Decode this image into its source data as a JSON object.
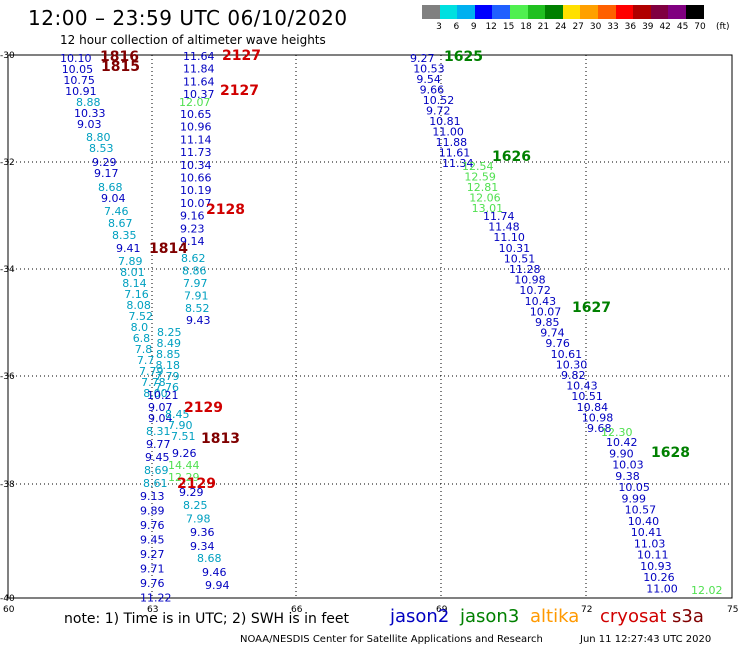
{
  "title": "12:00 – 23:59 UTC 06/10/2020",
  "subtitle": "12 hour collection of altimeter wave heights",
  "colorbar": {
    "ticks": [
      "3",
      "6",
      "9",
      "12",
      "15",
      "18",
      "21",
      "24",
      "27",
      "30",
      "33",
      "36",
      "39",
      "42",
      "45",
      "70"
    ],
    "unit": "(ft)",
    "colors": [
      "#808080",
      "#00e0e0",
      "#00b0f0",
      "#0000ff",
      "#2060ff",
      "#50f050",
      "#20c020",
      "#008000",
      "#ffe000",
      "#ffa000",
      "#ff6000",
      "#ff0000",
      "#b00000",
      "#800040",
      "#800080",
      "#000000"
    ]
  },
  "axes": {
    "lat_labels": [
      "-30",
      "-32",
      "-34",
      "-36",
      "-38",
      "-40"
    ],
    "lon_labels": [
      "60",
      "63",
      "66",
      "69",
      "72",
      "75"
    ]
  },
  "colors": {
    "jason2": "#0000c0",
    "jason3": "#008000",
    "altika": "#ff9900",
    "cryosat": "#d00000",
    "s3a": "#800000",
    "light": "#00a0c0",
    "lightgreen": "#50e050"
  },
  "tracks": {
    "t1": {
      "color": "#0000c0",
      "values": [
        "10.10",
        "10.05",
        "10.75",
        "10.91"
      ]
    },
    "t1b": {
      "color": "#00a0c0",
      "values": [
        "8.88"
      ]
    },
    "t1c": {
      "color": "#0000c0",
      "values": [
        "10.33",
        "9.03"
      ]
    },
    "t1d": {
      "color": "#00a0c0",
      "values": [
        "8.80",
        "8.53"
      ]
    },
    "t1e": {
      "color": "#0000c0",
      "values": [
        "9.29",
        "9.17"
      ]
    },
    "t1f": {
      "color": "#00a0c0",
      "values": [
        "8.68"
      ]
    },
    "t1g": {
      "color": "#0000c0",
      "values": [
        "9.04"
      ]
    },
    "t1h": {
      "color": "#00a0c0",
      "values": [
        "7.46",
        "8.67",
        "8.35"
      ]
    },
    "t1i": {
      "color": "#0000c0",
      "values": [
        "9.41"
      ]
    },
    "t1j": {
      "color": "#00a0c0",
      "values": [
        "7.89",
        "8.01",
        "8.14",
        "7.16",
        "8.08",
        "7.52",
        "8.0",
        "6.8",
        "7.8",
        "7.7",
        "7.79",
        "7.78",
        "8.00"
      ]
    },
    "t1k": {
      "color": "#0000c0",
      "values": [
        "9.07",
        "9.04"
      ]
    },
    "t1l": {
      "color": "#00a0c0",
      "values": [
        "8.31"
      ]
    },
    "t1m": {
      "color": "#0000c0",
      "values": [
        "9.77",
        "9.45"
      ]
    },
    "t1n": {
      "color": "#00a0c0",
      "values": [
        "8.69",
        "8.61"
      ]
    },
    "t1o": {
      "color": "#0000c0",
      "values": [
        "9.13",
        "9.89",
        "9.76",
        "9.45",
        "9.27",
        "9.71",
        "9.76",
        "11.22"
      ]
    },
    "t2a": {
      "color": "#0000c0",
      "values": [
        "11.64",
        "11.84",
        "11.64",
        "10.37"
      ]
    },
    "t2b": {
      "color": "#50e050",
      "values": [
        "12.07"
      ]
    },
    "t2c": {
      "color": "#0000c0",
      "values": [
        "10.65",
        "10.96",
        "11.14",
        "11.73",
        "10.34",
        "10.66",
        "10.19",
        "10.07",
        "9.16",
        "9.23",
        "9.14"
      ]
    },
    "t2d": {
      "color": "#00a0c0",
      "values": [
        "8.62",
        "8.86",
        "7.97",
        "7.91",
        "8.52"
      ]
    },
    "t2e": {
      "color": "#0000c0",
      "values": [
        "9.43"
      ]
    },
    "t2f": {
      "color": "#00a0c0",
      "values": [
        "8.25",
        "8.49",
        "8.85",
        "8.18",
        "7.79",
        "7.76"
      ]
    },
    "t2g": {
      "color": "#0000c0",
      "values": [
        "10.21"
      ]
    },
    "t2h": {
      "color": "#00a0c0",
      "values": [
        "8.45",
        "7.90",
        "7.51"
      ]
    },
    "t2i": {
      "color": "#0000c0",
      "values": [
        "9.26"
      ]
    },
    "t2j": {
      "color": "#50e050",
      "values": [
        "14.44",
        "12.29"
      ]
    },
    "t2k": {
      "color": "#0000c0",
      "values": [
        "9.29"
      ]
    },
    "t2l": {
      "color": "#00a0c0",
      "values": [
        "8.25",
        "7.98"
      ]
    },
    "t2m": {
      "color": "#0000c0",
      "values": [
        "9.36",
        "9.34"
      ]
    },
    "t2n": {
      "color": "#00a0c0",
      "values": [
        "8.68"
      ]
    },
    "t2o": {
      "color": "#0000c0",
      "values": [
        "9.46",
        "9.94"
      ]
    },
    "t3a": {
      "color": "#0000c0",
      "values": [
        "9.27",
        "10.53",
        "9.54",
        "9.66",
        "10.52",
        "9.72",
        "10.81",
        "11.00",
        "11.88",
        "11.61",
        "11.34"
      ]
    },
    "t3b": {
      "color": "#50e050",
      "values": [
        "12.54",
        "12.59",
        "12.81",
        "12.06",
        "13.01"
      ]
    },
    "t3c": {
      "color": "#0000c0",
      "values": [
        "11.74",
        "11.48",
        "11.10",
        "10.31",
        "10.51",
        "11.28",
        "10.98",
        "10.72",
        "10.43",
        "10.07",
        "9.85",
        "9.74",
        "9.76",
        "10.61",
        "10.30",
        "9.82",
        "10.43",
        "10.51",
        "10.84",
        "10.98",
        "9.68"
      ]
    },
    "t3d": {
      "color": "#50e050",
      "values": [
        "12.30"
      ]
    },
    "t3e": {
      "color": "#0000c0",
      "values": [
        "10.42",
        "9.90",
        "10.03",
        "9.38",
        "10.05",
        "9.99",
        "10.57",
        "10.40",
        "10.41",
        "11.03",
        "10.11",
        "10.93",
        "10.26",
        "11.00"
      ]
    },
    "t3f": {
      "color": "#50e050",
      "values": [
        "12.02"
      ]
    }
  },
  "time_labels": [
    {
      "text": "1816",
      "color": "#800000"
    },
    {
      "text": "1815",
      "color": "#800000"
    },
    {
      "text": "2127",
      "color": "#d00000"
    },
    {
      "text": "2127",
      "color": "#d00000"
    },
    {
      "text": "2128",
      "color": "#d00000"
    },
    {
      "text": "1814",
      "color": "#800000"
    },
    {
      "text": "2129",
      "color": "#d00000"
    },
    {
      "text": "1813",
      "color": "#800000"
    },
    {
      "text": "2129",
      "color": "#d00000"
    },
    {
      "text": "1625",
      "color": "#008000"
    },
    {
      "text": "1626",
      "color": "#008000"
    },
    {
      "text": "1627",
      "color": "#008000"
    },
    {
      "text": "1628",
      "color": "#008000"
    }
  ],
  "note": "note:  1) Time is in UTC; 2) SWH is in feet",
  "legend": {
    "jason2": "jason2",
    "jason3": "jason3",
    "altika": "altika",
    "cryosat": "cryosat",
    "s3a": "s3a"
  },
  "footer": "NOAA/NESDIS Center for Satellite Applications and Research",
  "footer_time": "Jun 11 12:27:43 UTC 2020"
}
